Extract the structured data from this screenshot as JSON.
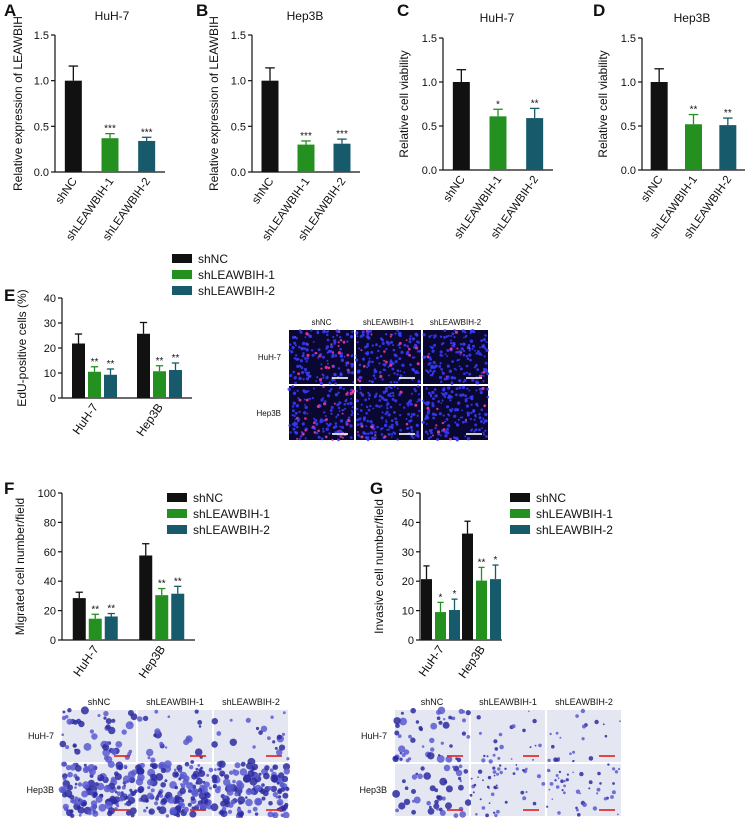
{
  "chart_data": [
    {
      "type": "bar",
      "panel": "A",
      "title": "HuH-7",
      "y_label": "Relative expression of LEAWBIH",
      "categories": [
        "shNC",
        "shLEAWBIH-1",
        "shLEAWBIH-2"
      ],
      "values": [
        1.0,
        0.37,
        0.34
      ],
      "errors": [
        0.16,
        0.05,
        0.04
      ],
      "significance": [
        null,
        "***",
        "***"
      ],
      "colors": [
        "#111111",
        "#23901f",
        "#165a6c"
      ],
      "ylim": [
        0,
        1.5
      ],
      "yticks": [
        {
          "value": 0,
          "label": "0.0"
        },
        0.5,
        {
          "value": 1,
          "label": "1.0"
        },
        1.5
      ]
    },
    {
      "type": "bar",
      "panel": "B",
      "title": "Hep3B",
      "y_label": "Relative expression of LEAWBIH",
      "categories": [
        "shNC",
        "shLEAWBIH-1",
        "shLEAWBIH-2"
      ],
      "values": [
        1.0,
        0.3,
        0.31
      ],
      "errors": [
        0.14,
        0.04,
        0.05
      ],
      "significance": [
        null,
        "***",
        "***"
      ],
      "colors": [
        "#111111",
        "#23901f",
        "#165a6c"
      ],
      "ylim": [
        0,
        1.5
      ],
      "yticks": [
        {
          "value": 0,
          "label": "0.0"
        },
        0.5,
        {
          "value": 1,
          "label": "1.0"
        },
        1.5
      ]
    },
    {
      "type": "bar",
      "panel": "C",
      "title": "HuH-7",
      "y_label": "Relative cell viability",
      "categories": [
        "shNC",
        "shLEAWBIH-1",
        "shLEAWBIH-2"
      ],
      "values": [
        1.0,
        0.61,
        0.59
      ],
      "errors": [
        0.14,
        0.08,
        0.11
      ],
      "significance": [
        null,
        "*",
        "**"
      ],
      "colors": [
        "#111111",
        "#23901f",
        "#165a6c"
      ],
      "ylim": [
        0,
        1.5
      ],
      "yticks": [
        {
          "value": 0,
          "label": "0.0"
        },
        0.5,
        {
          "value": 1,
          "label": "1.0"
        },
        1.5
      ]
    },
    {
      "type": "bar",
      "panel": "D",
      "title": "Hep3B",
      "y_label": "Relative cell viability",
      "categories": [
        "shNC",
        "shLEAWBIH-1",
        "shLEAWBIH-2"
      ],
      "values": [
        1.0,
        0.52,
        0.51
      ],
      "errors": [
        0.15,
        0.11,
        0.08
      ],
      "significance": [
        null,
        "**",
        "**"
      ],
      "colors": [
        "#111111",
        "#23901f",
        "#165a6c"
      ],
      "ylim": [
        0,
        1.5
      ],
      "yticks": [
        {
          "value": 0,
          "label": "0.0"
        },
        0.5,
        {
          "value": 1,
          "label": "1.0"
        },
        1.5
      ]
    },
    {
      "type": "grouped_bar",
      "panel": "E",
      "y_label": "EdU-positive cells (%)",
      "categories": [
        "HuH-7",
        "Hep3B"
      ],
      "series": [
        {
          "name": "shNC",
          "color": "#111111",
          "values": [
            21.8,
            25.7
          ],
          "errors": [
            3.8,
            4.5
          ],
          "significance": [
            null,
            null
          ]
        },
        {
          "name": "shLEAWBIH-1",
          "color": "#23901f",
          "values": [
            10.5,
            10.7
          ],
          "errors": [
            2.0,
            2.2
          ],
          "significance": [
            "**",
            "**"
          ]
        },
        {
          "name": "shLEAWBIH-2",
          "color": "#165a6c",
          "values": [
            9.3,
            11.2
          ],
          "errors": [
            2.3,
            2.8
          ],
          "significance": [
            "**",
            "**"
          ]
        }
      ],
      "ylim": [
        0,
        40
      ],
      "yticks": [
        0,
        10,
        20,
        30,
        40
      ]
    },
    {
      "type": "grouped_bar",
      "panel": "F",
      "y_label": "Migrated cell number/field",
      "categories": [
        "HuH-7",
        "Hep3B"
      ],
      "series": [
        {
          "name": "shNC",
          "color": "#111111",
          "values": [
            28.5,
            57.5
          ],
          "errors": [
            4,
            8
          ],
          "significance": [
            null,
            null
          ]
        },
        {
          "name": "shLEAWBIH-1",
          "color": "#23901f",
          "values": [
            14.5,
            30.5
          ],
          "errors": [
            3,
            4.5
          ],
          "significance": [
            "**",
            "**"
          ]
        },
        {
          "name": "shLEAWBIH-2",
          "color": "#165a6c",
          "values": [
            16,
            31.5
          ],
          "errors": [
            2,
            5
          ],
          "significance": [
            "**",
            "**"
          ]
        }
      ],
      "ylim": [
        0,
        100
      ],
      "yticks": [
        0,
        20,
        40,
        60,
        80,
        100
      ]
    },
    {
      "type": "grouped_bar",
      "panel": "G",
      "y_label": "Invasive cell number/field",
      "categories": [
        "HuH-7",
        "Hep3B"
      ],
      "series": [
        {
          "name": "shNC",
          "color": "#111111",
          "values": [
            20.7,
            36.2
          ],
          "errors": [
            4.5,
            4.2
          ],
          "significance": [
            null,
            null
          ]
        },
        {
          "name": "shLEAWBIH-1",
          "color": "#23901f",
          "values": [
            9.5,
            20.2
          ],
          "errors": [
            3.3,
            4.5
          ],
          "significance": [
            "*",
            "**"
          ]
        },
        {
          "name": "shLEAWBIH-2",
          "color": "#165a6c",
          "values": [
            10.2,
            20.7
          ],
          "errors": [
            3.7,
            4.8
          ],
          "significance": [
            "*",
            "*"
          ]
        }
      ],
      "ylim": [
        0,
        50
      ],
      "yticks": [
        0,
        10,
        20,
        30,
        40,
        50
      ]
    }
  ],
  "image_panels": [
    {
      "columns": [
        "shNC",
        "shLEAWBIH-1",
        "shLEAWBIH-2"
      ],
      "rows": [
        "HuH-7",
        "Hep3B"
      ]
    },
    {
      "columns": [
        "shNC",
        "shLEAWBIH-1",
        "shLEAWBIH-2"
      ],
      "rows": [
        "HuH-7",
        "Hep3B"
      ]
    },
    {
      "columns": [
        "shNC",
        "shLEAWBIH-1",
        "shLEAWBIH-2"
      ],
      "rows": [
        "HuH-7",
        "Hep3B"
      ]
    }
  ]
}
